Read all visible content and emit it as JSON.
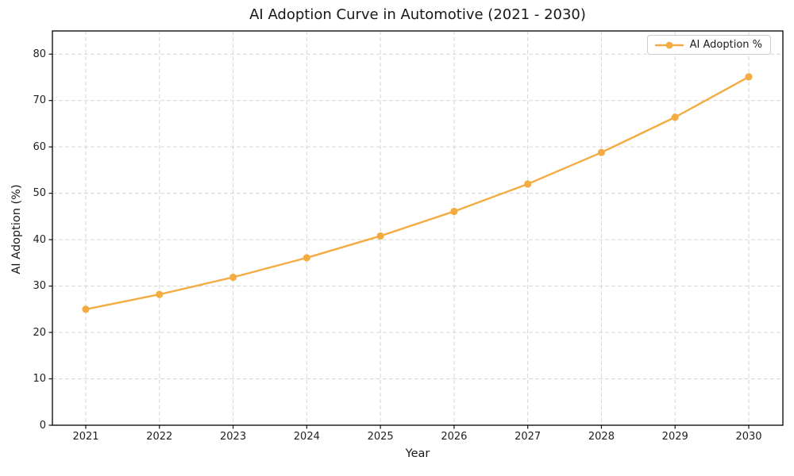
{
  "chart_data": {
    "type": "line",
    "title": "AI Adoption Curve in Automotive (2021 - 2030)",
    "xlabel": "Year",
    "ylabel": "AI Adoption (%)",
    "categories": [
      "2021",
      "2022",
      "2023",
      "2024",
      "2025",
      "2026",
      "2027",
      "2028",
      "2029",
      "2030"
    ],
    "series": [
      {
        "name": "AI Adoption %",
        "color": "#F3AB42",
        "marker": "circle",
        "values": [
          25.0,
          28.2,
          31.9,
          36.1,
          40.8,
          46.1,
          52.0,
          58.8,
          66.4,
          75.1
        ]
      }
    ],
    "ylim": [
      0,
      85
    ],
    "yticks": [
      0,
      10,
      20,
      30,
      40,
      50,
      60,
      70,
      80
    ],
    "grid": {
      "visible": true,
      "style": "dashed",
      "color": "#d6d6d6"
    },
    "legend": {
      "position": "upper right"
    },
    "axis_color": "#111111",
    "background": "#ffffff"
  }
}
